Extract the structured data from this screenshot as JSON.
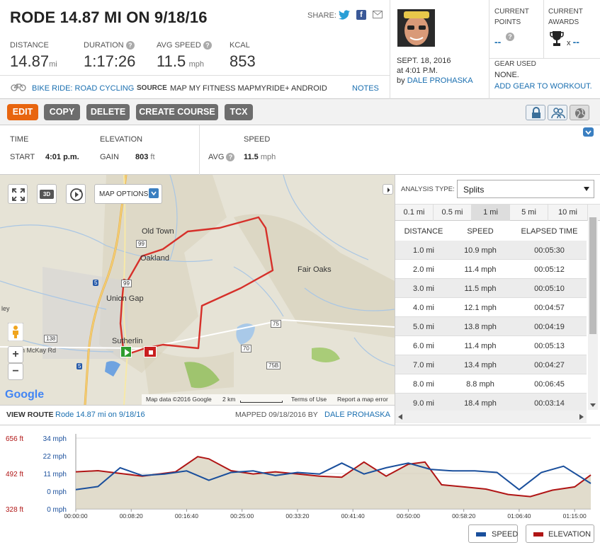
{
  "workout": {
    "title": "RODE 14.87 MI ON 9/18/16",
    "share_label": "SHARE:",
    "stats": [
      {
        "label": "DISTANCE",
        "value": "14.87",
        "unit": "mi",
        "help": false
      },
      {
        "label": "DURATION",
        "value": "1:17:26",
        "unit": "",
        "help": true
      },
      {
        "label": "AVG SPEED",
        "value": "11.5",
        "unit": "mph",
        "help": true
      },
      {
        "label": "KCAL",
        "value": "853",
        "unit": "",
        "help": false
      }
    ],
    "activity_type": "BIKE RIDE: ROAD CYCLING",
    "source_label": "SOURCE",
    "source_value": "MAP MY FITNESS MAPMYRIDE+ ANDROID",
    "notes_label": "NOTES",
    "date_line1": "SEPT. 18, 2016",
    "date_line2": "at 4:01 P.M.",
    "by_label": "by",
    "author": "DALE PROHASKA"
  },
  "points": {
    "label1": "CURRENT",
    "label2": "POINTS",
    "value": "--"
  },
  "awards": {
    "label1": "CURRENT",
    "label2": "AWARDS",
    "prefix": "x",
    "value": "--"
  },
  "gear": {
    "label": "GEAR USED",
    "value": "NONE.",
    "add_link": "ADD GEAR TO WORKOUT."
  },
  "toolbar": {
    "edit": "EDIT",
    "copy": "COPY",
    "delete": "DELETE",
    "create_course": "CREATE COURSE",
    "tcx": "TCX"
  },
  "details": {
    "time_label": "TIME",
    "start_label": "START",
    "start_value": "4:01 p.m.",
    "elevation_label": "ELEVATION",
    "gain_label": "GAIN",
    "gain_value": "803",
    "gain_unit": "ft",
    "speed_label": "SPEED",
    "avg_label": "AVG",
    "avg_value": "11.5",
    "avg_unit": "mph"
  },
  "map": {
    "options_label": "MAP OPTIONS",
    "badge_3d": "3D",
    "places": [
      "Old Town",
      "Oakland",
      "Union Gap",
      "Sutherlin",
      "Fair Oaks",
      "n McKay Rd",
      "ley"
    ],
    "roads": [
      "99",
      "99",
      "5",
      "5",
      "138",
      "75",
      "70",
      "75B"
    ],
    "google": "Google",
    "data_text": "Map data ©2016 Google",
    "scale_text": "2 km",
    "terms": "Terms of Use",
    "report": "Report a map error",
    "view_route_label": "VIEW ROUTE",
    "view_route_link": "Rode 14.87 mi on 9/18/16",
    "mapped_label": "MAPPED 09/18/2016 BY",
    "mapped_by": "DALE PROHASKA"
  },
  "analysis": {
    "type_label": "ANALYSIS TYPE:",
    "type_value": "Splits",
    "segments": [
      "0.1 mi",
      "0.5 mi",
      "1 mi",
      "5 mi",
      "10 mi"
    ],
    "selected_segment": "1 mi",
    "columns": [
      "DISTANCE",
      "SPEED",
      "ELAPSED TIME"
    ],
    "rows": [
      [
        "1.0 mi",
        "10.9 mph",
        "00:05:30"
      ],
      [
        "2.0 mi",
        "11.4 mph",
        "00:05:12"
      ],
      [
        "3.0 mi",
        "11.5 mph",
        "00:05:10"
      ],
      [
        "4.0 mi",
        "12.1 mph",
        "00:04:57"
      ],
      [
        "5.0 mi",
        "13.8 mph",
        "00:04:19"
      ],
      [
        "6.0 mi",
        "11.4 mph",
        "00:05:13"
      ],
      [
        "7.0 mi",
        "13.4 mph",
        "00:04:27"
      ],
      [
        "8.0 mi",
        "8.8 mph",
        "00:06:45"
      ],
      [
        "9.0 mi",
        "18.4 mph",
        "00:03:14"
      ]
    ]
  },
  "colors": {
    "speed": "#1a4f9c",
    "elevation": "#b01515",
    "accent": "#e8650f",
    "link": "#1a6fb0"
  },
  "chart_data": {
    "type": "line",
    "title": "",
    "xlabel": "",
    "x_ticks": [
      "00:00:00",
      "00:08:20",
      "00:16:40",
      "00:25:00",
      "00:33:20",
      "00:41:40",
      "00:50:00",
      "00:58:20",
      "01:06:40",
      "01:15:00"
    ],
    "xlim_seconds": [
      0,
      4646
    ],
    "elevation_ticks": [
      "656 ft",
      "492 ft",
      "328 ft"
    ],
    "elevation_range_ft": [
      328,
      656
    ],
    "speed_ticks": [
      "34 mph",
      "22 mph",
      "11 mph",
      "0 mph",
      "0 mph"
    ],
    "speed_range_mph": [
      0,
      34
    ],
    "legend": [
      "SPEED",
      "ELEVATION"
    ],
    "legend_placement": "bottom-right",
    "series": [
      {
        "name": "ELEVATION",
        "unit": "ft",
        "x": [
          0,
          200,
          600,
          900,
          1100,
          1200,
          1400,
          1600,
          1800,
          2000,
          2200,
          2400,
          2600,
          2800,
          3000,
          3150,
          3300,
          3500,
          3700,
          3900,
          4100,
          4300,
          4500,
          4646
        ],
        "values": [
          500,
          505,
          480,
          500,
          570,
          560,
          505,
          490,
          500,
          490,
          480,
          475,
          545,
          480,
          535,
          545,
          440,
          430,
          420,
          395,
          385,
          415,
          430,
          485
        ]
      },
      {
        "name": "SPEED",
        "unit": "mph",
        "x": [
          0,
          200,
          400,
          600,
          800,
          1000,
          1200,
          1400,
          1600,
          1800,
          2000,
          2200,
          2400,
          2600,
          2800,
          3000,
          3200,
          3400,
          3600,
          3800,
          4000,
          4200,
          4400,
          4646
        ],
        "values": [
          1,
          3,
          15,
          10,
          11,
          13,
          7,
          12,
          13,
          10,
          12,
          11,
          18,
          11,
          15,
          18,
          14,
          13,
          13,
          12,
          1,
          12,
          16,
          5
        ]
      }
    ]
  }
}
